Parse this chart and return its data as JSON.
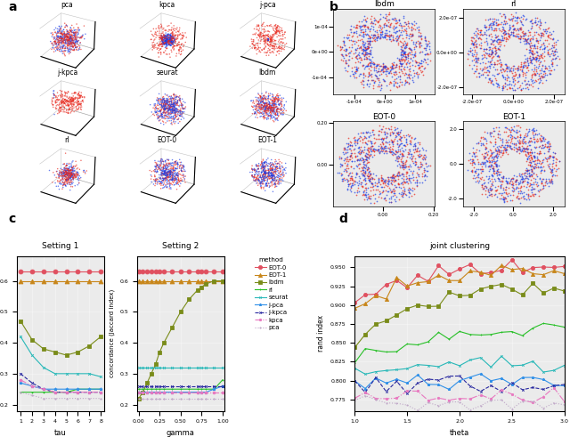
{
  "panel_a_titles": [
    "pca",
    "kpca",
    "j-pca",
    "j-kpca",
    "seurat",
    "lbdm",
    "rl",
    "EOT-0",
    "EOT-1"
  ],
  "panel_b_titles": [
    "lbdm",
    "rl",
    "EOT-0",
    "EOT-1"
  ],
  "panel_c_title1": "Setting 1",
  "panel_c_title2": "Setting 2",
  "panel_d_title": "joint clustering",
  "panel_c_xlabel1": "tau",
  "panel_c_xlabel2": "gamma",
  "panel_c_ylabel": "concordance (Jaccard index)",
  "panel_d_xlabel": "theta",
  "panel_d_ylabel": "rand index",
  "setting1_tau": [
    1,
    2,
    3,
    4,
    5,
    6,
    7,
    8
  ],
  "setting1_EOT0": [
    0.63,
    0.63,
    0.63,
    0.63,
    0.63,
    0.63,
    0.63,
    0.63
  ],
  "setting1_EOT1": [
    0.6,
    0.6,
    0.6,
    0.6,
    0.6,
    0.6,
    0.6,
    0.6
  ],
  "setting1_lbdm": [
    0.47,
    0.41,
    0.38,
    0.37,
    0.36,
    0.37,
    0.39,
    0.42
  ],
  "setting1_rl": [
    0.24,
    0.24,
    0.24,
    0.24,
    0.24,
    0.25,
    0.25,
    0.25
  ],
  "setting1_seurat": [
    0.42,
    0.36,
    0.32,
    0.3,
    0.3,
    0.3,
    0.3,
    0.29
  ],
  "setting1_jpca": [
    0.27,
    0.26,
    0.25,
    0.25,
    0.25,
    0.25,
    0.25,
    0.25
  ],
  "setting1_jkpca": [
    0.3,
    0.27,
    0.25,
    0.24,
    0.24,
    0.24,
    0.24,
    0.24
  ],
  "setting1_kpca": [
    0.28,
    0.26,
    0.25,
    0.24,
    0.24,
    0.24,
    0.24,
    0.24
  ],
  "setting1_pca": [
    0.24,
    0.23,
    0.22,
    0.22,
    0.22,
    0.22,
    0.22,
    0.22
  ],
  "setting2_gamma": [
    0.0,
    0.05,
    0.1,
    0.15,
    0.2,
    0.25,
    0.3,
    0.4,
    0.5,
    0.6,
    0.7,
    0.75,
    0.8,
    0.9,
    1.0
  ],
  "setting2_EOT0": [
    0.63,
    0.63,
    0.63,
    0.63,
    0.63,
    0.63,
    0.63,
    0.63,
    0.63,
    0.63,
    0.63,
    0.63,
    0.63,
    0.63,
    0.63
  ],
  "setting2_EOT1": [
    0.6,
    0.6,
    0.6,
    0.6,
    0.6,
    0.6,
    0.6,
    0.6,
    0.6,
    0.6,
    0.6,
    0.6,
    0.6,
    0.6,
    0.6
  ],
  "setting2_lbdm": [
    0.22,
    0.24,
    0.27,
    0.3,
    0.33,
    0.37,
    0.4,
    0.45,
    0.5,
    0.54,
    0.57,
    0.58,
    0.59,
    0.6,
    0.6
  ],
  "setting2_rl": [
    0.25,
    0.25,
    0.25,
    0.25,
    0.25,
    0.25,
    0.25,
    0.25,
    0.25,
    0.25,
    0.25,
    0.25,
    0.25,
    0.25,
    0.28
  ],
  "setting2_seurat": [
    0.32,
    0.32,
    0.32,
    0.32,
    0.32,
    0.32,
    0.32,
    0.32,
    0.32,
    0.32,
    0.32,
    0.32,
    0.32,
    0.32,
    0.32
  ],
  "setting2_jpca": [
    0.24,
    0.24,
    0.24,
    0.24,
    0.24,
    0.24,
    0.24,
    0.24,
    0.24,
    0.24,
    0.24,
    0.24,
    0.24,
    0.25,
    0.26
  ],
  "setting2_jkpca": [
    0.26,
    0.26,
    0.26,
    0.26,
    0.26,
    0.26,
    0.26,
    0.26,
    0.26,
    0.26,
    0.26,
    0.26,
    0.26,
    0.26,
    0.26
  ],
  "setting2_kpca": [
    0.24,
    0.24,
    0.24,
    0.24,
    0.24,
    0.24,
    0.24,
    0.24,
    0.24,
    0.24,
    0.24,
    0.24,
    0.24,
    0.24,
    0.24
  ],
  "setting2_pca": [
    0.22,
    0.22,
    0.22,
    0.22,
    0.22,
    0.22,
    0.22,
    0.22,
    0.22,
    0.22,
    0.22,
    0.22,
    0.22,
    0.22,
    0.22
  ],
  "joint_theta": [
    1.0,
    1.1,
    1.2,
    1.3,
    1.4,
    1.5,
    1.6,
    1.7,
    1.8,
    1.9,
    2.0,
    2.1,
    2.2,
    2.3,
    2.4,
    2.5,
    2.6,
    2.7,
    2.8,
    2.9,
    3.0
  ],
  "joint_EOT0": [
    0.902,
    0.91,
    0.918,
    0.925,
    0.93,
    0.935,
    0.938,
    0.941,
    0.943,
    0.945,
    0.946,
    0.947,
    0.948,
    0.949,
    0.95,
    0.95,
    0.951,
    0.951,
    0.951,
    0.951,
    0.952
  ],
  "joint_EOT1": [
    0.9,
    0.908,
    0.915,
    0.921,
    0.926,
    0.93,
    0.933,
    0.936,
    0.938,
    0.94,
    0.942,
    0.943,
    0.944,
    0.945,
    0.946,
    0.946,
    0.947,
    0.947,
    0.947,
    0.947,
    0.948
  ],
  "joint_lbdm": [
    0.845,
    0.858,
    0.87,
    0.88,
    0.888,
    0.895,
    0.9,
    0.905,
    0.909,
    0.912,
    0.915,
    0.917,
    0.919,
    0.92,
    0.921,
    0.922,
    0.922,
    0.922,
    0.922,
    0.922,
    0.922
  ],
  "joint_rl": [
    0.82,
    0.825,
    0.83,
    0.835,
    0.84,
    0.845,
    0.848,
    0.852,
    0.855,
    0.857,
    0.858,
    0.86,
    0.861,
    0.862,
    0.863,
    0.864,
    0.865,
    0.866,
    0.867,
    0.868,
    0.87
  ],
  "joint_seurat": [
    0.81,
    0.813,
    0.816,
    0.819,
    0.82,
    0.821,
    0.821,
    0.821,
    0.821,
    0.821,
    0.821,
    0.821,
    0.821,
    0.821,
    0.821,
    0.821,
    0.821,
    0.821,
    0.821,
    0.821,
    0.821
  ],
  "joint_jpca": [
    0.8,
    0.8,
    0.8,
    0.8,
    0.8,
    0.8,
    0.8,
    0.8,
    0.8,
    0.8,
    0.8,
    0.8,
    0.8,
    0.8,
    0.8,
    0.8,
    0.8,
    0.8,
    0.8,
    0.8,
    0.8
  ],
  "joint_jkpca": [
    0.795,
    0.795,
    0.795,
    0.795,
    0.795,
    0.795,
    0.795,
    0.795,
    0.795,
    0.795,
    0.795,
    0.795,
    0.795,
    0.795,
    0.795,
    0.795,
    0.795,
    0.795,
    0.795,
    0.795,
    0.795
  ],
  "joint_kpca": [
    0.775,
    0.775,
    0.775,
    0.775,
    0.775,
    0.775,
    0.775,
    0.775,
    0.775,
    0.775,
    0.775,
    0.775,
    0.775,
    0.775,
    0.775,
    0.775,
    0.775,
    0.775,
    0.775,
    0.775,
    0.775
  ],
  "joint_pca": [
    0.77,
    0.77,
    0.77,
    0.77,
    0.77,
    0.77,
    0.77,
    0.77,
    0.77,
    0.77,
    0.77,
    0.77,
    0.77,
    0.77,
    0.77,
    0.77,
    0.77,
    0.77,
    0.77,
    0.77,
    0.77
  ],
  "bg_color": "#ebebeb",
  "red_color": "#e8251a",
  "blue_color": "#1a3ee8"
}
